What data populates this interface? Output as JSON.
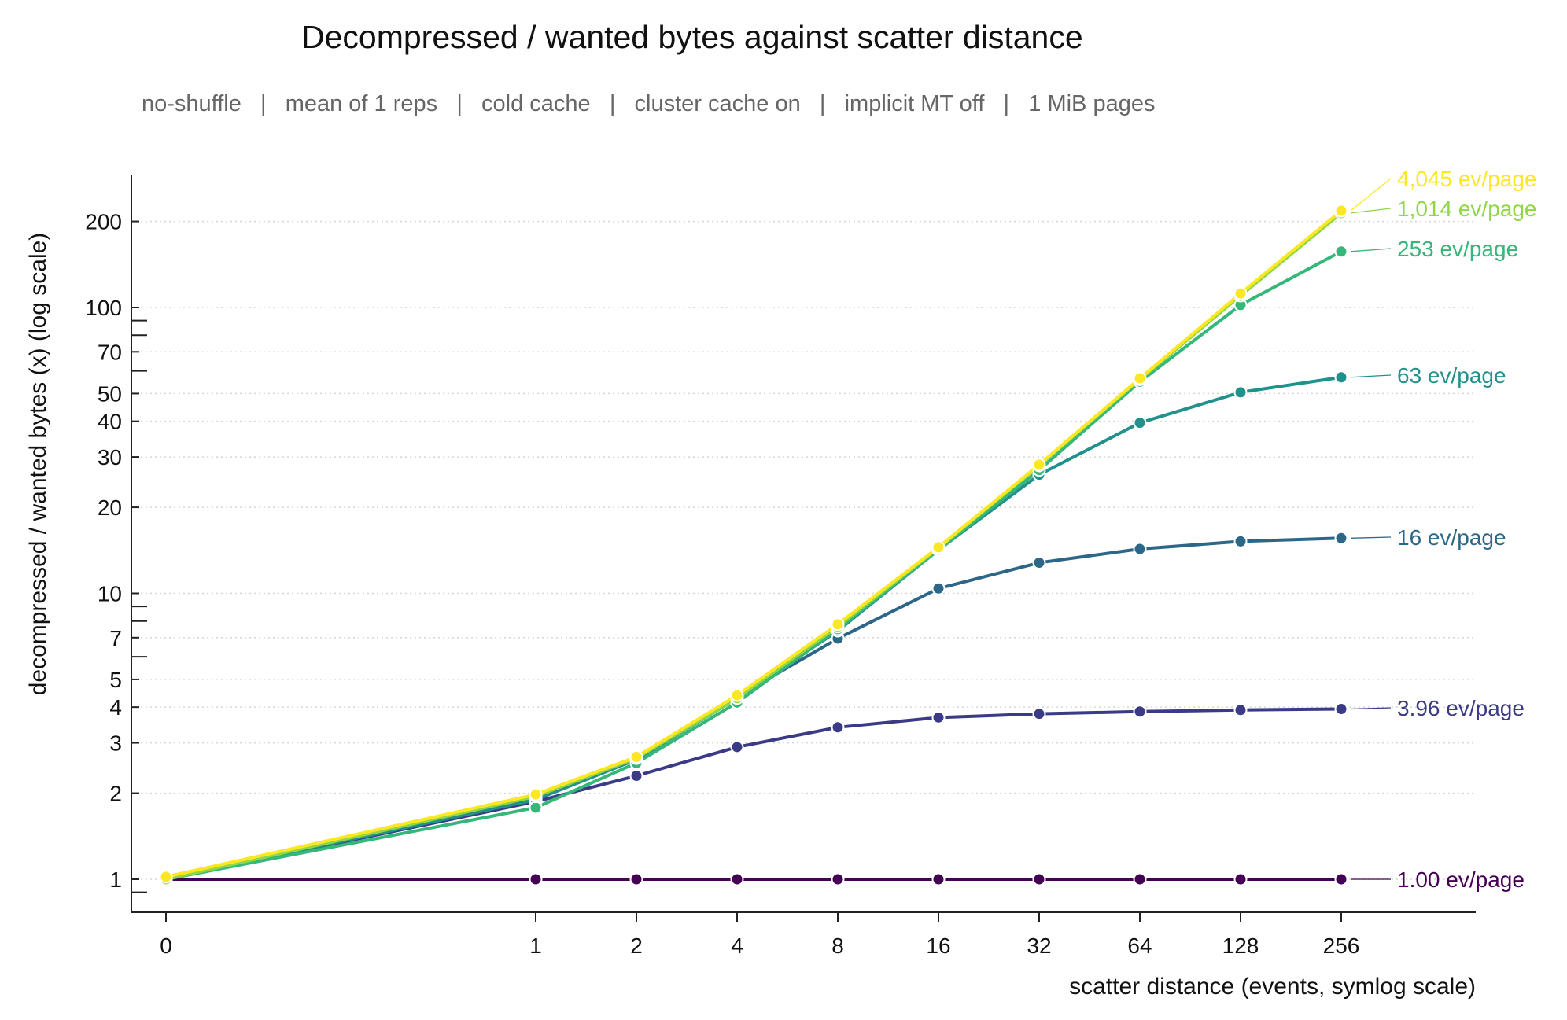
{
  "chart_data": {
    "type": "line",
    "title": "Decompressed / wanted bytes against scatter distance",
    "subtitle": "no-shuffle   |   mean of 1 reps   |   cold cache   |   cluster cache on   |   implicit MT off   |   1 MiB pages",
    "xlabel": "scatter distance (events, symlog scale)",
    "ylabel": "decompressed / wanted bytes (x) (log scale)",
    "x_scale": "symlog",
    "y_scale": "log",
    "grid": "horizontal dotted",
    "legend": "labels at line ends (right)",
    "x": [
      0,
      1,
      2,
      4,
      8,
      16,
      32,
      64,
      128,
      256
    ],
    "x_ticks": [
      "0",
      "1",
      "2",
      "4",
      "8",
      "16",
      "32",
      "64",
      "128",
      "256"
    ],
    "y_ticks": [
      1,
      2,
      3,
      4,
      5,
      7,
      10,
      20,
      30,
      40,
      50,
      70,
      100,
      200
    ],
    "y_tick_labels": [
      "1",
      "2",
      "3",
      "4",
      "5",
      "7",
      "10",
      "20",
      "30",
      "40",
      "50",
      "70",
      "100",
      "200"
    ],
    "ylim": [
      0.82,
      340
    ],
    "series": [
      {
        "name": "1.00 ev/page",
        "color": "#440154",
        "values": [
          1.0,
          1.0,
          1.0,
          1.0,
          1.0,
          1.0,
          1.0,
          1.0,
          1.0,
          1.0
        ]
      },
      {
        "name": "3.96 ev/page",
        "color": "#3b3a86",
        "values": [
          1.0,
          1.87,
          2.3,
          2.9,
          3.4,
          3.68,
          3.79,
          3.86,
          3.91,
          3.94
        ]
      },
      {
        "name": "16 ev/page",
        "color": "#2c6788",
        "values": [
          1.0,
          1.9,
          2.65,
          4.35,
          6.95,
          10.4,
          12.8,
          14.3,
          15.2,
          15.6
        ]
      },
      {
        "name": "63 ev/page",
        "color": "#21918c",
        "values": [
          1.0,
          1.9,
          2.62,
          4.3,
          7.4,
          14.2,
          26.0,
          39.5,
          50.5,
          57.0
        ]
      },
      {
        "name": "253 ev/page",
        "color": "#35b779",
        "values": [
          1.0,
          1.78,
          2.55,
          4.15,
          7.5,
          14.2,
          27.0,
          55.0,
          102.0,
          157.0
        ]
      },
      {
        "name": "1,014 ev/page",
        "color": "#8fd744",
        "values": [
          1.0,
          1.95,
          2.65,
          4.3,
          7.65,
          14.4,
          28.0,
          56.0,
          110.0,
          214.0
        ]
      },
      {
        "name": "4,045 ev/page",
        "color": "#fde725",
        "values": [
          1.02,
          1.98,
          2.68,
          4.4,
          7.8,
          14.5,
          28.2,
          56.5,
          112.0,
          218.0
        ]
      }
    ]
  }
}
